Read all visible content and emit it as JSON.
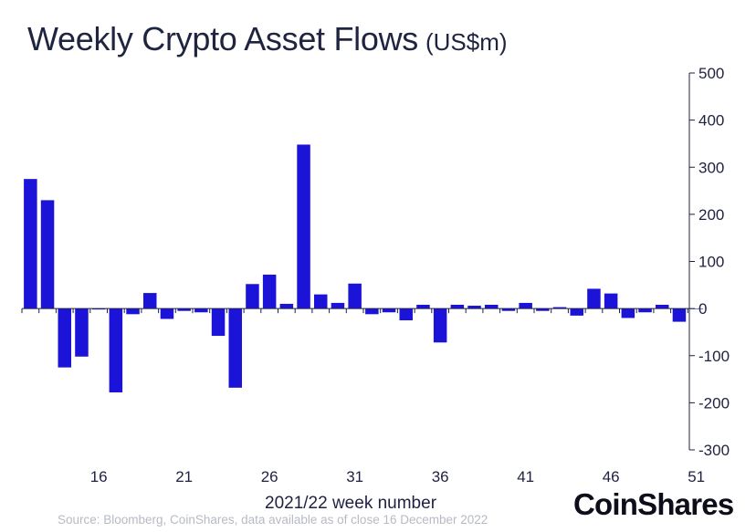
{
  "header": {
    "title": "Weekly Crypto Asset Flows",
    "units": "(US$m)"
  },
  "footer": {
    "xlabel": "2021/22 week number",
    "source": "Source: Bloomberg, CoinShares, data available as of close 16 December 2022",
    "logo": "CoinShares"
  },
  "chart_data": {
    "type": "bar",
    "x": [
      12,
      13,
      14,
      15,
      16,
      17,
      18,
      19,
      20,
      21,
      22,
      23,
      24,
      25,
      26,
      27,
      28,
      29,
      30,
      31,
      32,
      33,
      34,
      35,
      36,
      37,
      38,
      39,
      40,
      41,
      42,
      43,
      44,
      45,
      46,
      47,
      48,
      49,
      50,
      51
    ],
    "values": [
      275,
      230,
      -125,
      -102,
      -2,
      -178,
      -12,
      33,
      -22,
      -5,
      -8,
      -58,
      -168,
      52,
      72,
      10,
      348,
      30,
      12,
      53,
      -12,
      -8,
      -25,
      8,
      -72,
      8,
      6,
      8,
      -5,
      12,
      -5,
      3,
      -15,
      42,
      32,
      -20,
      -8,
      8,
      -28,
      0
    ],
    "x_tick_labels": [
      "16",
      "21",
      "26",
      "31",
      "36",
      "41",
      "46",
      "51"
    ],
    "x_tick_values": [
      16,
      21,
      26,
      31,
      36,
      41,
      46,
      51
    ],
    "y_tick_labels": [
      "500",
      "400",
      "300",
      "200",
      "100",
      "0",
      "-100",
      "-200",
      "-300"
    ],
    "y_tick_values": [
      500,
      400,
      300,
      200,
      100,
      0,
      -100,
      -200,
      -300
    ],
    "ylim": [
      -300,
      500
    ],
    "grid": false,
    "y_axis_side": "right",
    "bar_color": "#1c13d8"
  }
}
